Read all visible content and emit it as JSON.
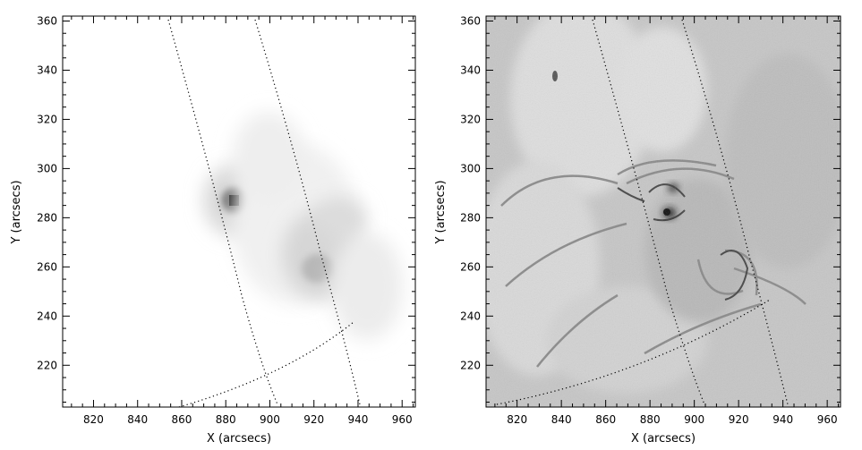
{
  "panels": [
    {
      "id": "left",
      "xlabel": "X (arcsecs)",
      "ylabel": "Y (arcsecs)",
      "xlim": [
        806,
        966
      ],
      "ylim": [
        203,
        362
      ],
      "xticks": [
        820,
        840,
        860,
        880,
        900,
        920,
        940,
        960
      ],
      "yticks": [
        220,
        240,
        260,
        280,
        300,
        320,
        340,
        360
      ],
      "background": "#ffffff"
    },
    {
      "id": "right",
      "xlabel": "X (arcsecs)",
      "ylabel": "Y (arcsecs)",
      "xlim": [
        806,
        966
      ],
      "ylim": [
        203,
        362
      ],
      "xticks": [
        820,
        840,
        860,
        880,
        900,
        920,
        940,
        960
      ],
      "yticks": [
        220,
        240,
        260,
        280,
        300,
        320,
        340,
        360
      ],
      "background": "#c8c8c8"
    }
  ]
}
